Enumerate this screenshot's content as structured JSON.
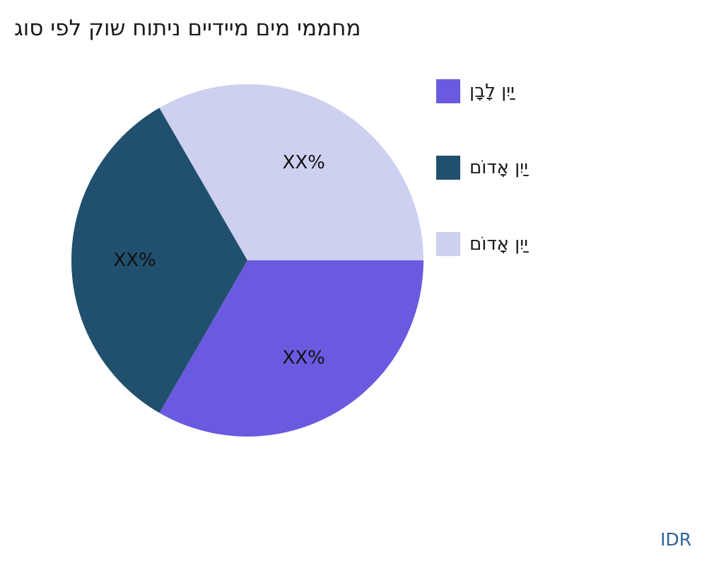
{
  "chart_data": {
    "type": "pie",
    "title": "גוס יפל קוש חותינ םיידיימ םימ יממחמ",
    "legend_position": "right",
    "start_angle_deg": 0,
    "direction": "clockwise",
    "slices": [
      {
        "label": "ןבָלָ ןיִיַ",
        "value": 33.33,
        "display_label": "XX%",
        "color": "#6A5AE0"
      },
      {
        "label": "םוֹדאָ ןיִיַ",
        "value": 33.33,
        "display_label": "XX%",
        "color": "#21506E"
      },
      {
        "label": "םוֹדאָ ןיִיַ",
        "value": 33.34,
        "display_label": "XX%",
        "color": "#CDD0EF"
      }
    ]
  },
  "footer": {
    "currency_label": "IDR",
    "color": "#31639C"
  },
  "colors": {
    "text": "#1A1A1A",
    "background": "#FFFFFF"
  }
}
